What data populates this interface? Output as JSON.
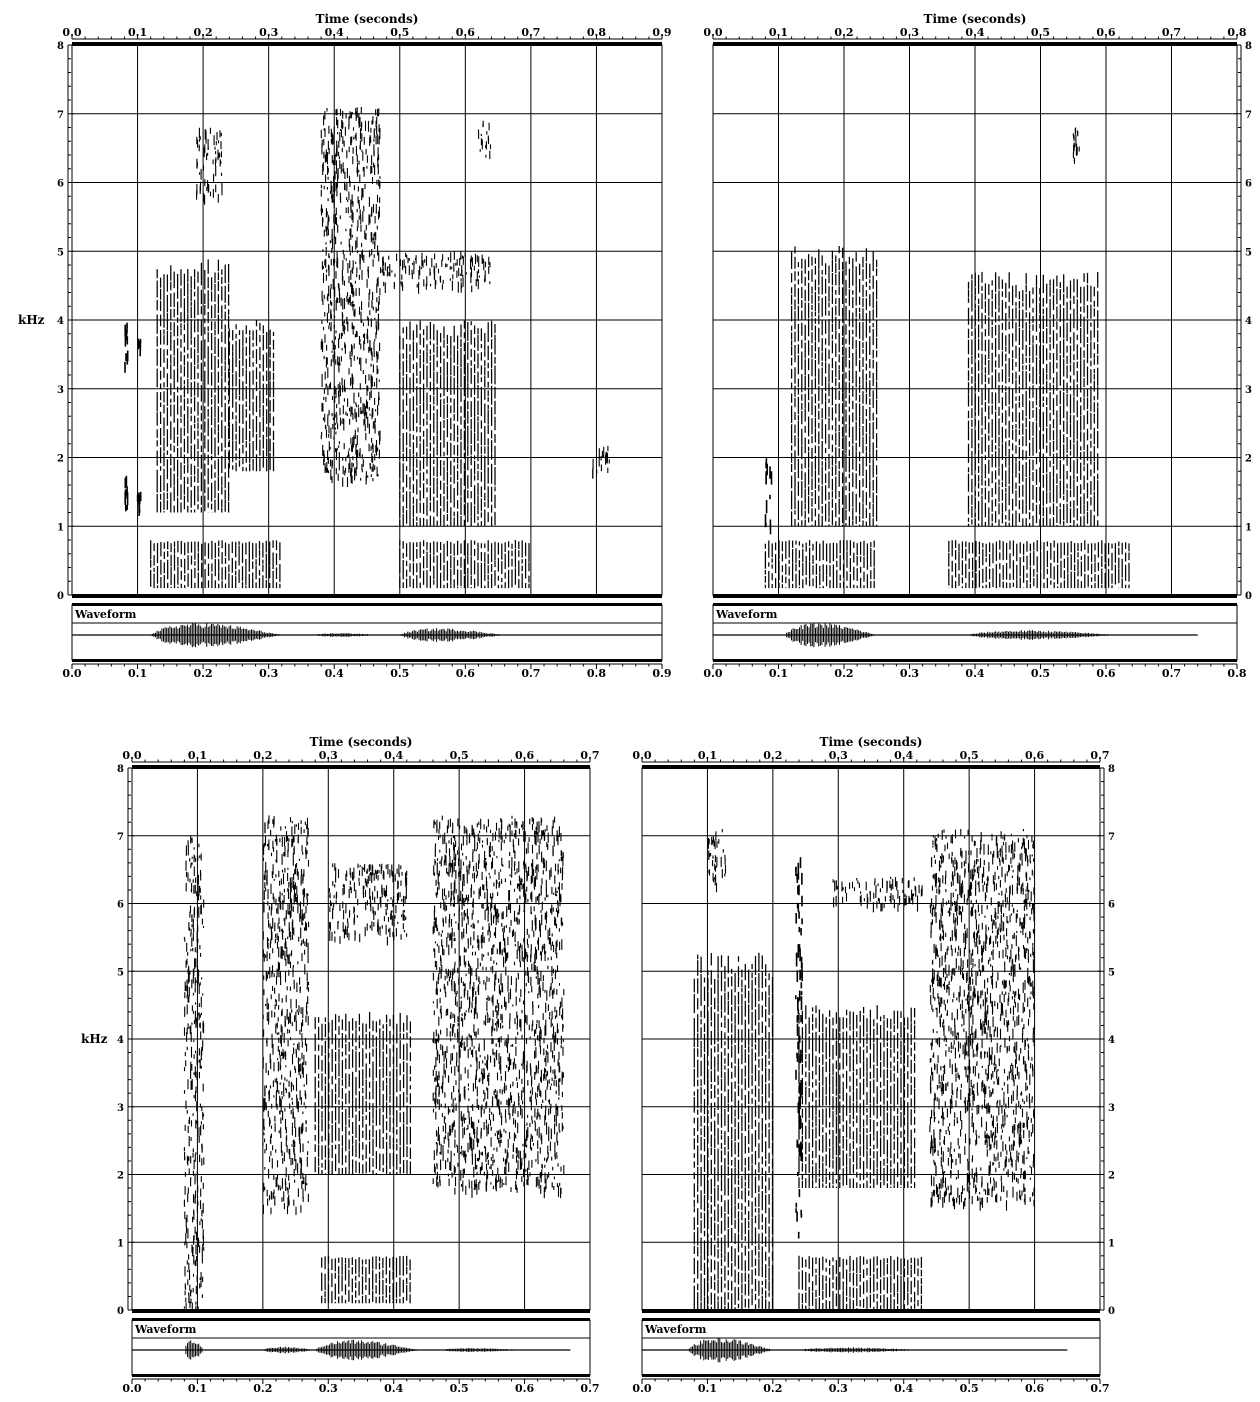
{
  "chart_data": [
    {
      "type": "heatmap",
      "title": "Time (seconds)",
      "ylabel": "kHz",
      "waveform_label": "Waveform",
      "xlim": [
        0,
        0.9
      ],
      "ylim": [
        0,
        8
      ],
      "xticks": [
        "0.0",
        "0.1",
        "0.2",
        "0.3",
        "0.4",
        "0.5",
        "0.6",
        "0.7",
        "0.8",
        "0.9"
      ],
      "yticks": [
        "0",
        "1",
        "2",
        "3",
        "4",
        "5",
        "6",
        "7",
        "8"
      ],
      "y_axis_side": "left",
      "energy_regions": [
        {
          "t0": 0.08,
          "t1": 0.085,
          "f0": 3.3,
          "f1": 4.1,
          "kind": "burst"
        },
        {
          "t0": 0.08,
          "t1": 0.085,
          "f0": 1.1,
          "f1": 1.8,
          "kind": "burst"
        },
        {
          "t0": 0.1,
          "t1": 0.105,
          "f0": 1.1,
          "f1": 1.6,
          "kind": "burst"
        },
        {
          "t0": 0.1,
          "t1": 0.105,
          "f0": 3.6,
          "f1": 3.9,
          "kind": "burst"
        },
        {
          "t0": 0.12,
          "t1": 0.32,
          "f0": 0.1,
          "f1": 0.8,
          "kind": "voiced"
        },
        {
          "t0": 0.13,
          "t1": 0.24,
          "f0": 1.2,
          "f1": 4.9,
          "kind": "voiced"
        },
        {
          "t0": 0.24,
          "t1": 0.31,
          "f0": 1.8,
          "f1": 4.0,
          "kind": "voiced"
        },
        {
          "t0": 0.19,
          "t1": 0.23,
          "f0": 5.8,
          "f1": 6.8,
          "kind": "frication"
        },
        {
          "t0": 0.38,
          "t1": 0.47,
          "f0": 1.7,
          "f1": 7.1,
          "kind": "frication"
        },
        {
          "t0": 0.47,
          "t1": 0.64,
          "f0": 4.5,
          "f1": 5.0,
          "kind": "frication"
        },
        {
          "t0": 0.5,
          "t1": 0.7,
          "f0": 0.1,
          "f1": 0.8,
          "kind": "voiced"
        },
        {
          "t0": 0.5,
          "t1": 0.65,
          "f0": 1.0,
          "f1": 4.0,
          "kind": "voiced"
        },
        {
          "t0": 0.62,
          "t1": 0.64,
          "f0": 6.4,
          "f1": 6.9,
          "kind": "frication"
        },
        {
          "t0": 0.79,
          "t1": 0.82,
          "f0": 1.8,
          "f1": 2.2,
          "kind": "frication"
        }
      ],
      "waveform_segments": [
        {
          "t0": 0.12,
          "t1": 0.32,
          "amp": 0.9
        },
        {
          "t0": 0.37,
          "t1": 0.47,
          "amp": 0.15
        },
        {
          "t0": 0.5,
          "t1": 0.66,
          "amp": 0.5
        }
      ],
      "waveform_end": 0.9
    },
    {
      "type": "heatmap",
      "title": "Time (seconds)",
      "waveform_label": "Waveform",
      "xlim": [
        0,
        0.8
      ],
      "ylim": [
        0,
        8
      ],
      "xticks": [
        "0.0",
        "0.1",
        "0.2",
        "0.3",
        "0.4",
        "0.5",
        "0.6",
        "0.7",
        "0.8"
      ],
      "yticks": [
        "0",
        "1",
        "2",
        "3",
        "4",
        "5",
        "6",
        "7",
        "8"
      ],
      "y_axis_side": "right",
      "energy_regions": [
        {
          "t0": 0.08,
          "t1": 0.09,
          "f0": 1.0,
          "f1": 2.0,
          "kind": "burst"
        },
        {
          "t0": 0.08,
          "t1": 0.25,
          "f0": 0.1,
          "f1": 0.8,
          "kind": "voiced"
        },
        {
          "t0": 0.12,
          "t1": 0.25,
          "f0": 1.0,
          "f1": 5.1,
          "kind": "voiced"
        },
        {
          "t0": 0.36,
          "t1": 0.64,
          "f0": 0.1,
          "f1": 0.8,
          "kind": "voiced"
        },
        {
          "t0": 0.39,
          "t1": 0.59,
          "f0": 1.0,
          "f1": 4.7,
          "kind": "voiced"
        },
        {
          "t0": 0.55,
          "t1": 0.56,
          "f0": 6.3,
          "f1": 6.8,
          "kind": "frication"
        }
      ],
      "waveform_segments": [
        {
          "t0": 0.11,
          "t1": 0.25,
          "amp": 0.9
        },
        {
          "t0": 0.39,
          "t1": 0.62,
          "amp": 0.35
        }
      ],
      "waveform_end": 0.74
    },
    {
      "type": "heatmap",
      "title": "Time (seconds)",
      "ylabel": "kHz",
      "waveform_label": "Waveform",
      "xlim": [
        0,
        0.7
      ],
      "ylim": [
        0,
        8
      ],
      "xticks": [
        "0.0",
        "0.1",
        "0.2",
        "0.3",
        "0.4",
        "0.5",
        "0.6",
        "0.7"
      ],
      "yticks": [
        "0",
        "1",
        "2",
        "3",
        "4",
        "5",
        "6",
        "7",
        "8"
      ],
      "y_axis_side": "left",
      "energy_regions": [
        {
          "t0": 0.08,
          "t1": 0.11,
          "f0": 0.0,
          "f1": 7.0,
          "kind": "frication"
        },
        {
          "t0": 0.2,
          "t1": 0.27,
          "f0": 1.5,
          "f1": 7.3,
          "kind": "frication"
        },
        {
          "t0": 0.29,
          "t1": 0.43,
          "f0": 0.1,
          "f1": 0.8,
          "kind": "voiced"
        },
        {
          "t0": 0.28,
          "t1": 0.43,
          "f0": 2.0,
          "f1": 4.4,
          "kind": "voiced"
        },
        {
          "t0": 0.3,
          "t1": 0.42,
          "f0": 5.5,
          "f1": 6.6,
          "kind": "frication"
        },
        {
          "t0": 0.46,
          "t1": 0.66,
          "f0": 1.8,
          "f1": 7.3,
          "kind": "frication"
        }
      ],
      "waveform_segments": [
        {
          "t0": 0.08,
          "t1": 0.11,
          "amp": 0.8
        },
        {
          "t0": 0.2,
          "t1": 0.28,
          "amp": 0.25
        },
        {
          "t0": 0.28,
          "t1": 0.44,
          "amp": 0.75
        },
        {
          "t0": 0.47,
          "t1": 0.6,
          "amp": 0.15
        }
      ],
      "waveform_end": 0.67
    },
    {
      "type": "heatmap",
      "title": "Time (seconds)",
      "waveform_label": "Waveform",
      "xlim": [
        0,
        0.7
      ],
      "ylim": [
        0,
        8
      ],
      "xticks": [
        "0.0",
        "0.1",
        "0.2",
        "0.3",
        "0.4",
        "0.5",
        "0.6",
        "0.7"
      ],
      "yticks": [
        "0",
        "1",
        "2",
        "3",
        "4",
        "5",
        "6",
        "7",
        "8"
      ],
      "y_axis_side": "right",
      "energy_regions": [
        {
          "t0": 0.08,
          "t1": 0.2,
          "f0": 0.0,
          "f1": 5.3,
          "kind": "voiced"
        },
        {
          "t0": 0.1,
          "t1": 0.13,
          "f0": 6.3,
          "f1": 7.1,
          "kind": "frication"
        },
        {
          "t0": 0.235,
          "t1": 0.245,
          "f0": 1.0,
          "f1": 6.7,
          "kind": "burst"
        },
        {
          "t0": 0.24,
          "t1": 0.43,
          "f0": 0.0,
          "f1": 0.8,
          "kind": "voiced"
        },
        {
          "t0": 0.24,
          "t1": 0.42,
          "f0": 1.8,
          "f1": 4.5,
          "kind": "voiced"
        },
        {
          "t0": 0.29,
          "t1": 0.43,
          "f0": 6.0,
          "f1": 6.4,
          "kind": "frication"
        },
        {
          "t0": 0.44,
          "t1": 0.6,
          "f0": 1.6,
          "f1": 7.1,
          "kind": "frication"
        }
      ],
      "waveform_segments": [
        {
          "t0": 0.07,
          "t1": 0.2,
          "amp": 0.9
        },
        {
          "t0": 0.24,
          "t1": 0.43,
          "amp": 0.2
        }
      ],
      "waveform_end": 0.65
    }
  ]
}
